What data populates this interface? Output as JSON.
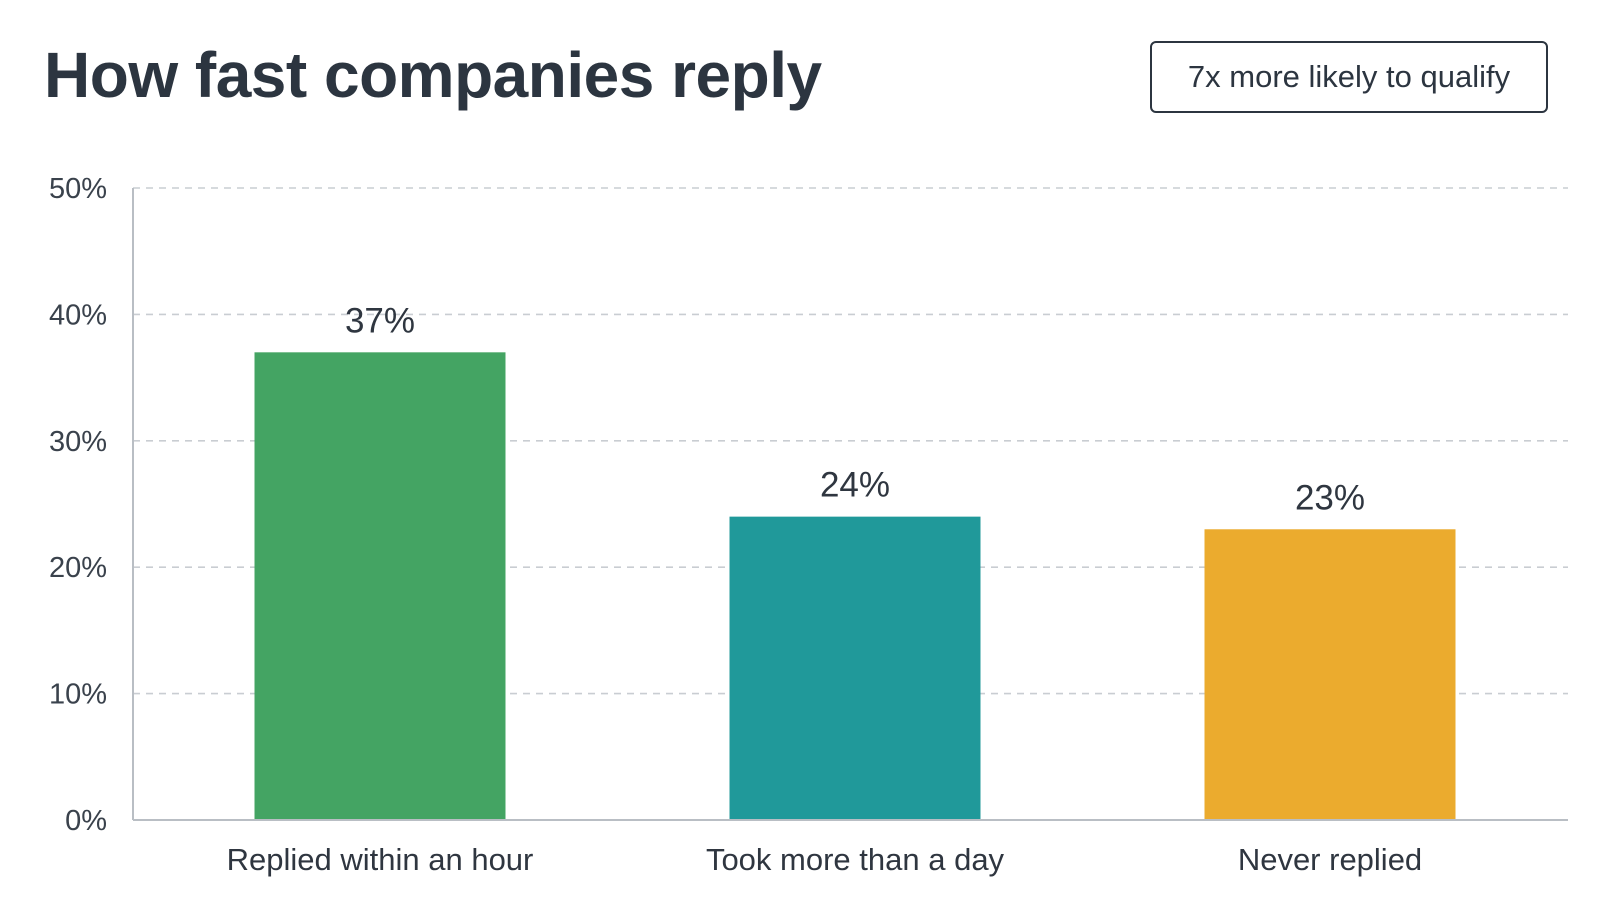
{
  "header": {
    "title": "How fast companies reply",
    "badge": "7x more likely to qualify"
  },
  "chart_data": {
    "type": "bar",
    "title": "How fast companies reply",
    "categories": [
      "Replied within an hour",
      "Took more than a day",
      "Never replied"
    ],
    "values": [
      37,
      24,
      23
    ],
    "data_labels": [
      "37%",
      "24%",
      "23%"
    ],
    "colors": [
      "#44a463",
      "#20999a",
      "#ebab2e"
    ],
    "ylim": [
      0,
      50
    ],
    "yticks": [
      0,
      10,
      20,
      30,
      40,
      50
    ],
    "ytick_labels": [
      "0%",
      "10%",
      "20%",
      "30%",
      "40%",
      "50%"
    ],
    "xlabel": "",
    "ylabel": "",
    "grid": true,
    "grid_style": "dashed",
    "legend": "none"
  }
}
